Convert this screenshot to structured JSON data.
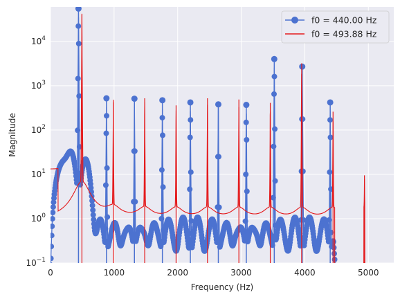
{
  "chart_data": {
    "type": "line",
    "title": "",
    "xlabel": "Frequency (Hz)",
    "ylabel": "Magnitude",
    "xlim": [
      0,
      5400
    ],
    "ylim": [
      0.1,
      60000
    ],
    "yscale": "log",
    "grid": true,
    "legend_position": "top-right",
    "x_ticks": [
      {
        "value": 0,
        "label": "0"
      },
      {
        "value": 1000,
        "label": "1000"
      },
      {
        "value": 2000,
        "label": "2000"
      },
      {
        "value": 3000,
        "label": "3000"
      },
      {
        "value": 4000,
        "label": "4000"
      },
      {
        "value": 5000,
        "label": "5000"
      }
    ],
    "y_ticks": [
      {
        "value": 0.1,
        "base": "10",
        "exp": "−1"
      },
      {
        "value": 1,
        "base": "10",
        "exp": "0"
      },
      {
        "value": 10,
        "base": "10",
        "exp": "1"
      },
      {
        "value": 100,
        "base": "10",
        "exp": "2"
      },
      {
        "value": 1000,
        "base": "10",
        "exp": "3"
      },
      {
        "value": 10000,
        "base": "10",
        "exp": "4"
      }
    ],
    "series": [
      {
        "name": "f0 = 440.00 Hz",
        "color": "#4c72d0",
        "marker": "circle",
        "baseline": 20,
        "harmonics": [
          {
            "f": 440,
            "peak": 55000
          },
          {
            "f": 880,
            "peak": 520
          },
          {
            "f": 1320,
            "peak": 510
          },
          {
            "f": 1760,
            "peak": 470
          },
          {
            "f": 2200,
            "peak": 420
          },
          {
            "f": 2640,
            "peak": 380
          },
          {
            "f": 3080,
            "peak": 370
          },
          {
            "f": 3520,
            "peak": 4000
          },
          {
            "f": 3960,
            "peak": 2700
          },
          {
            "f": 4400,
            "peak": 420
          }
        ]
      },
      {
        "name": "f0 = 493.88 Hz",
        "color": "#e41a1c",
        "marker": "none",
        "harmonics": [
          {
            "f": 493.88,
            "peak": 42000
          },
          {
            "f": 987.76,
            "peak": 480
          },
          {
            "f": 1481.64,
            "peak": 520
          },
          {
            "f": 1975.52,
            "peak": 360
          },
          {
            "f": 2469.4,
            "peak": 520
          },
          {
            "f": 2963.28,
            "peak": 490
          },
          {
            "f": 3457.16,
            "peak": 410
          },
          {
            "f": 3951.04,
            "peak": 3200
          },
          {
            "f": 4444.92,
            "peak": 260
          },
          {
            "f": 4938.8,
            "peak": 9.5
          }
        ]
      }
    ]
  }
}
